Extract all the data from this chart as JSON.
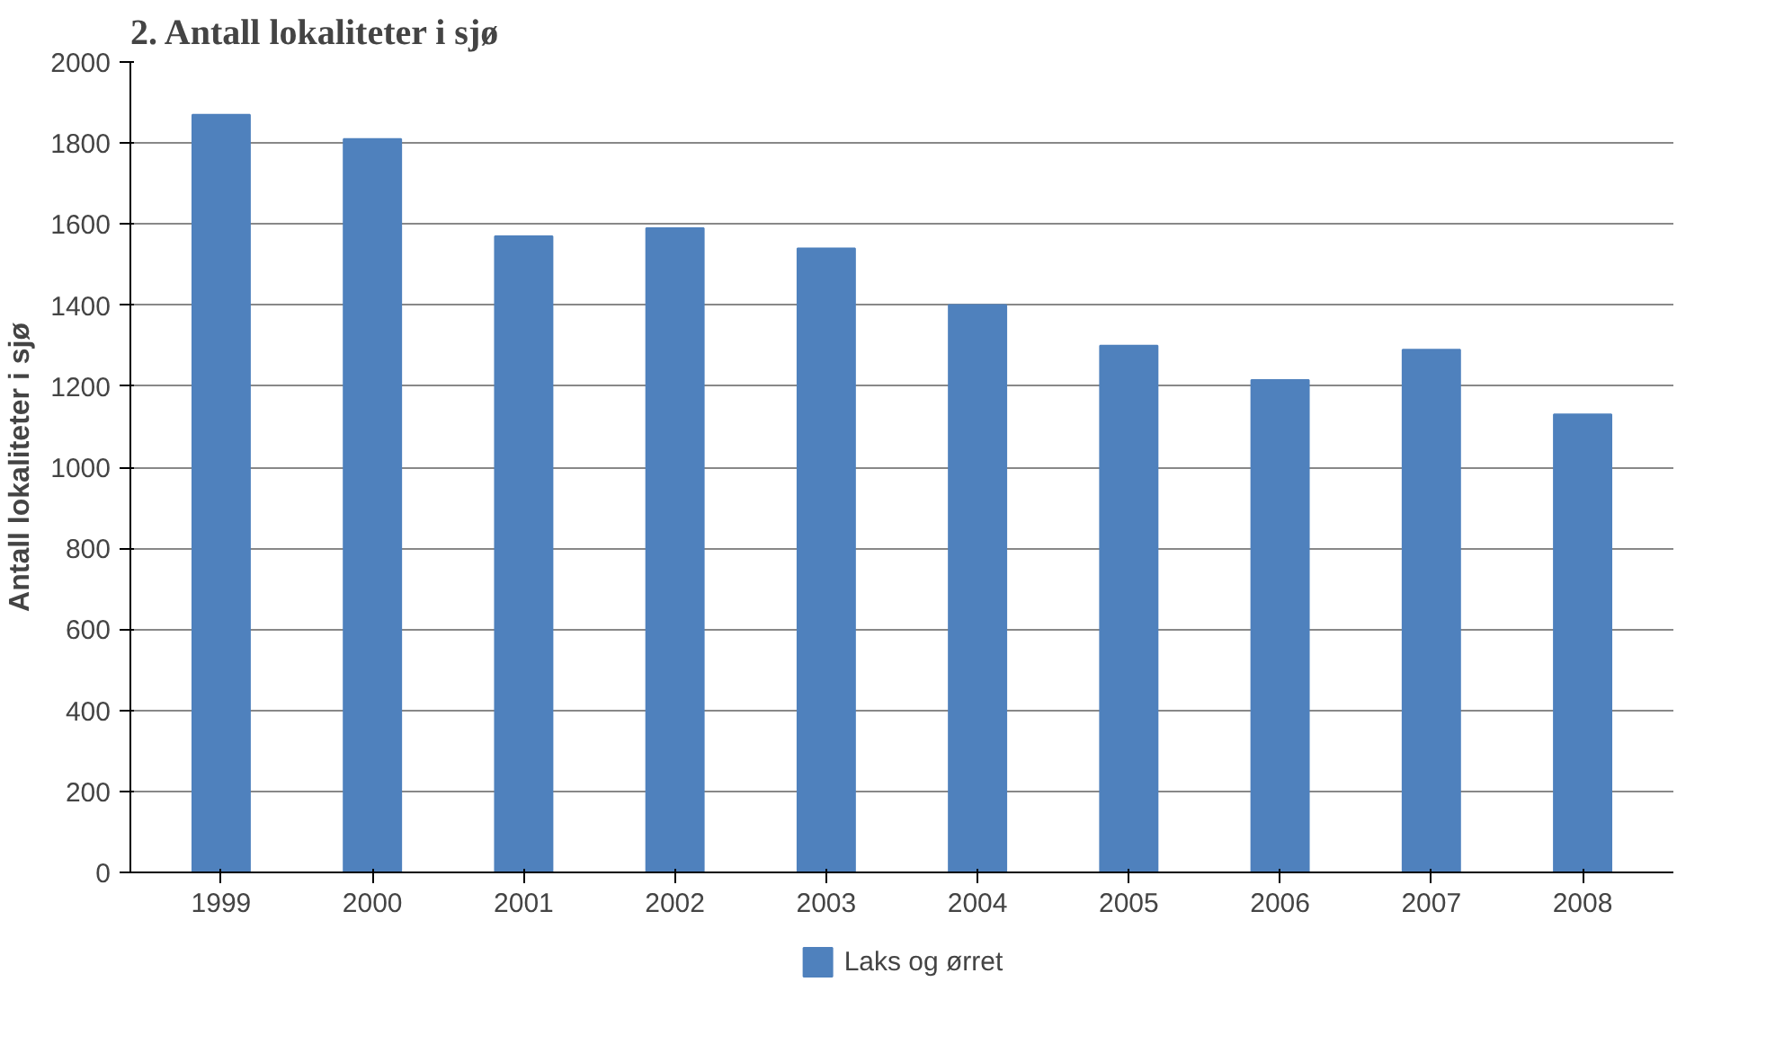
{
  "chart_data": {
    "type": "bar",
    "title": "2. Antall lokaliteter i sjø",
    "ylabel": "Antall lokaliteter i sjø",
    "categories": [
      "1999",
      "2000",
      "2001",
      "2002",
      "2003",
      "2004",
      "2005",
      "2006",
      "2007",
      "2008"
    ],
    "series": [
      {
        "name": "Laks og ørret",
        "color": "#4f81bd",
        "values": [
          1870,
          1810,
          1570,
          1590,
          1540,
          1400,
          1300,
          1215,
          1290,
          1130
        ]
      }
    ],
    "ylim": [
      0,
      2000
    ],
    "yticks": [
      0,
      200,
      400,
      600,
      800,
      1000,
      1200,
      1400,
      1600,
      1800,
      2000
    ],
    "grid": "y",
    "legend": "bottom"
  }
}
